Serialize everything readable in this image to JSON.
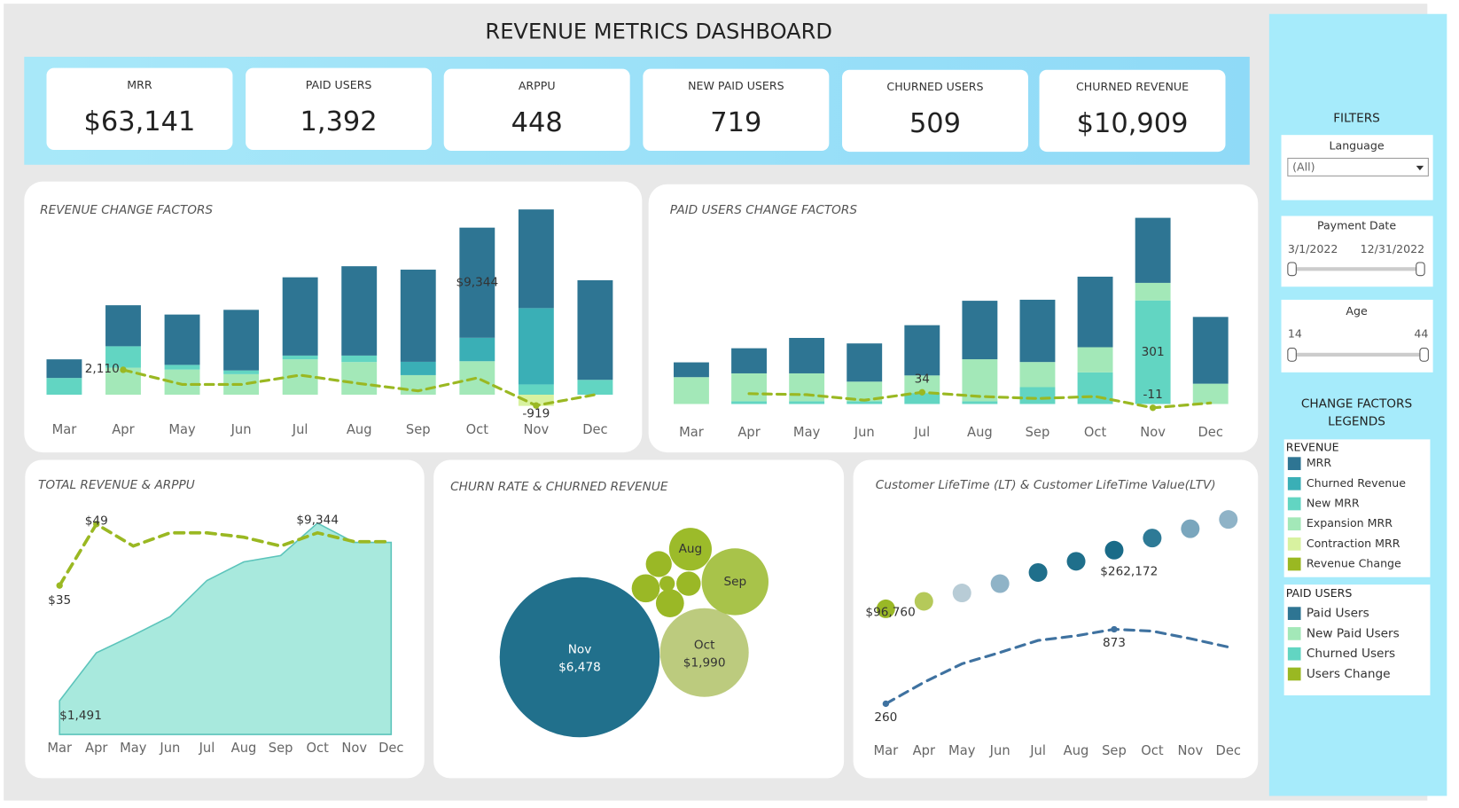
{
  "title": "REVENUE METRICS DASHBOARD",
  "kpis": [
    {
      "label": "MRR",
      "value": "$63,141"
    },
    {
      "label": "PAID USERS",
      "value": "1,392"
    },
    {
      "label": "ARPPU",
      "value": "448"
    },
    {
      "label": "NEW PAID USERS",
      "value": "719"
    },
    {
      "label": "CHURNED USERS",
      "value": "509"
    },
    {
      "label": "CHURNED REVENUE",
      "value": "$10,909"
    }
  ],
  "filters": {
    "title": "FILTERS",
    "language": {
      "label": "Language",
      "value": "(All)"
    },
    "payment_date": {
      "label": "Payment Date",
      "start": "3/1/2022",
      "end": "12/31/2022"
    },
    "age": {
      "label": "Age",
      "min": 14,
      "max": 44
    }
  },
  "legends": {
    "title": "CHANGE FACTORS LEGENDS",
    "revenue": "REVENUE",
    "paid_users": "PAID USERS"
  },
  "chart_data": [
    {
      "type": "bar",
      "title": "REVENUE CHANGE FACTORS",
      "categories": [
        "Mar",
        "Apr",
        "May",
        "Jun",
        "Jul",
        "Aug",
        "Sep",
        "Oct",
        "Nov",
        "Dec"
      ],
      "series": [
        {
          "name": "MRR",
          "color": "#2e7593",
          "values": [
            1580,
            3480,
            4270,
            5140,
            6640,
            7580,
            7820,
            9344,
            8370,
            8450
          ],
          "value_labels": [
            null,
            null,
            null,
            null,
            null,
            null,
            null,
            "$9,344",
            null,
            null
          ]
        },
        {
          "name": "Churned Revenue",
          "color": "#3aafb6",
          "values": [
            0,
            0,
            0,
            0,
            0,
            0,
            1130,
            1990,
            6478,
            0
          ]
        },
        {
          "name": "New MRR",
          "color": "#62d5c2",
          "values": [
            1420,
            1820,
            400,
            320,
            320,
            550,
            0,
            0,
            870,
            1260
          ]
        },
        {
          "name": "Expansion MRR",
          "color": "#a3e8b8",
          "values": [
            0,
            2290,
            2130,
            1740,
            3000,
            2770,
            1660,
            2840,
            0,
            0
          ]
        },
        {
          "name": "Contraction MRR",
          "color": "#d8f2a0",
          "values": [
            0,
            0,
            0,
            0,
            0,
            0,
            0,
            0,
            -950,
            0
          ]
        },
        {
          "name": "Revenue Change",
          "type": "line",
          "color": "#9ab822",
          "values": [
            null,
            2110,
            870,
            870,
            1660,
            950,
            320,
            1420,
            -919,
            0
          ],
          "value_labels": [
            null,
            "2,110",
            null,
            null,
            null,
            null,
            null,
            null,
            "-919",
            null
          ]
        }
      ]
    },
    {
      "type": "bar",
      "title": "PAID USERS CHANGE FACTORS",
      "categories": [
        "Mar",
        "Apr",
        "May",
        "Jun",
        "Jul",
        "Aug",
        "Sep",
        "Oct",
        "Nov",
        "Dec"
      ],
      "series": [
        {
          "name": "Paid Users",
          "color": "#2e7593",
          "values": [
            43,
            73,
            103,
            111,
            146,
            170,
            181,
            205,
            189,
            194
          ]
        },
        {
          "name": "New Paid Users",
          "color": "#a3e8b8",
          "values": [
            78,
            81,
            81,
            57,
            51,
            122,
            73,
            73,
            51,
            59
          ]
        },
        {
          "name": "Churned Users",
          "color": "#62d5c2",
          "values": [
            0,
            8,
            8,
            8,
            32,
            8,
            49,
            92,
            301,
            0
          ],
          "value_labels": [
            null,
            null,
            null,
            null,
            null,
            null,
            null,
            null,
            "301",
            null
          ]
        },
        {
          "name": "Users Change",
          "type": "line",
          "color": "#9ab822",
          "values": [
            null,
            30,
            27,
            11,
            34,
            22,
            16,
            22,
            -11,
            3
          ],
          "value_labels": [
            null,
            null,
            null,
            null,
            "34",
            null,
            null,
            null,
            "-11",
            null
          ]
        }
      ]
    },
    {
      "type": "area",
      "title": "TOTAL REVENUE & ARPPU",
      "categories": [
        "Mar",
        "Apr",
        "May",
        "Jun",
        "Jul",
        "Aug",
        "Sep",
        "Oct",
        "Nov",
        "Dec"
      ],
      "series": [
        {
          "color": "#a8e9dd",
          "values": [
            1491,
            3610,
            4390,
            5210,
            6810,
            7630,
            7910,
            9344,
            8490,
            8490
          ],
          "value_labels": [
            "$1,491",
            null,
            null,
            null,
            null,
            null,
            null,
            "$9,344",
            null,
            null
          ]
        },
        {
          "type": "line",
          "color": "#9ab822",
          "values": [
            35,
            49,
            44,
            47,
            47,
            46,
            44,
            47,
            45,
            45
          ],
          "value_labels": [
            "$35",
            "$49",
            null,
            null,
            null,
            null,
            null,
            null,
            null,
            null
          ]
        }
      ]
    },
    {
      "type": "bubble",
      "title": "CHURN RATE & CHURNED REVENUE",
      "categories": [
        "Nov",
        "Oct",
        "Sep",
        "Aug",
        null,
        null,
        null,
        null,
        null
      ],
      "values": [
        6478,
        1990,
        1130,
        460,
        170,
        200,
        200,
        60,
        150
      ],
      "value_labels": [
        "$6,478",
        "$1,990",
        null,
        null,
        null,
        null,
        null,
        null,
        null
      ],
      "colors": [
        "#21708c",
        "#bccb7e",
        "#a8c34a",
        "#9cbb2a",
        "#9ab826",
        "#9ab826",
        "#9ab826",
        "#9ab826",
        "#9ab826"
      ]
    },
    {
      "type": "scatter",
      "title": "Customer LifeTime (LT) & Customer LifeTime Value(LTV)",
      "categories": [
        "Mar",
        "Apr",
        "May",
        "Jun",
        "Jul",
        "Aug",
        "Sep",
        "Oct",
        "Nov",
        "Dec"
      ],
      "series": [
        {
          "colors": [
            "#9ab826",
            "#b5c95a",
            "#b8ccd6",
            "#8fb3c7",
            "#1f6f8b",
            "#1f6f8b",
            "#1a6b88",
            "#2e7a96",
            "#7aa6bd",
            "#8fb3c7"
          ],
          "values": [
            96760,
            117800,
            141400,
            167700,
            199200,
            230700,
            262172,
            296300,
            322600,
            348800
          ],
          "value_labels": [
            "$96,760",
            null,
            null,
            null,
            null,
            null,
            "$262,172",
            null,
            null,
            null
          ]
        },
        {
          "type": "line",
          "color": "#3f72a0",
          "values": [
            260,
            436,
            589,
            682,
            781,
            819,
            873,
            858,
            796,
            727
          ],
          "value_labels": [
            "260",
            null,
            null,
            null,
            null,
            null,
            "873",
            null,
            null,
            null
          ]
        }
      ]
    }
  ]
}
